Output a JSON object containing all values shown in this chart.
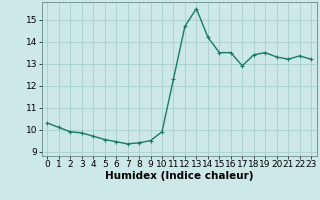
{
  "x": [
    0,
    1,
    2,
    3,
    4,
    5,
    6,
    7,
    8,
    9,
    10,
    11,
    12,
    13,
    14,
    15,
    16,
    17,
    18,
    19,
    20,
    21,
    22,
    23
  ],
  "y": [
    10.3,
    10.1,
    9.9,
    9.85,
    9.7,
    9.55,
    9.45,
    9.35,
    9.4,
    9.5,
    9.9,
    12.3,
    14.7,
    15.5,
    14.2,
    13.5,
    13.5,
    12.9,
    13.4,
    13.5,
    13.3,
    13.2,
    13.35,
    13.2
  ],
  "line_color": "#1a7a6a",
  "marker": "+",
  "marker_color": "#1a7a6a",
  "bg_color": "#cce8e8",
  "grid_color": "#aacece",
  "xlabel": "Humidex (Indice chaleur)",
  "xlim": [
    -0.5,
    23.5
  ],
  "ylim": [
    8.8,
    15.8
  ],
  "yticks": [
    9,
    10,
    11,
    12,
    13,
    14,
    15
  ],
  "xticks": [
    0,
    1,
    2,
    3,
    4,
    5,
    6,
    7,
    8,
    9,
    10,
    11,
    12,
    13,
    14,
    15,
    16,
    17,
    18,
    19,
    20,
    21,
    22,
    23
  ],
  "tick_fontsize": 6.5,
  "xlabel_fontsize": 7.5,
  "linewidth": 1.0,
  "markersize": 3.5
}
